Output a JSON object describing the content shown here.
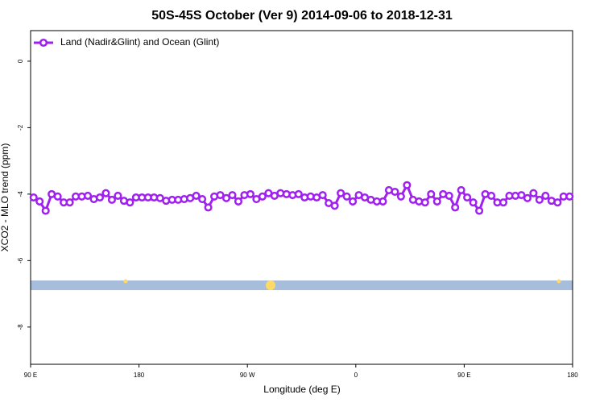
{
  "chart_data": {
    "type": "line",
    "title": "50S-45S October (Ver 9)   2014-09-06 to 2018-12-31",
    "x_label": "Longitude (deg E)",
    "y_label": "XCO2 - MLO trend (ppm)",
    "xlim": [
      90,
      540
    ],
    "xticks": [
      {
        "value": 90,
        "label": "90 E"
      },
      {
        "value": 180,
        "label": "180"
      },
      {
        "value": 270,
        "label": "90 W"
      },
      {
        "value": 360,
        "label": "0"
      },
      {
        "value": 450,
        "label": "90 E"
      },
      {
        "value": 540,
        "label": "180"
      }
    ],
    "ylim": [
      -9.12,
      0.92
    ],
    "yticks": [
      0,
      -2,
      -4,
      -6,
      -8
    ],
    "legend": "top-left",
    "series": [
      {
        "name": "Land (Nadir&Glint) and Ocean (Glint)",
        "color": "#a020f0",
        "x": [
          92.5,
          97.5,
          102.5,
          107.5,
          112.5,
          117.5,
          122.5,
          127.5,
          132.5,
          137.5,
          142.5,
          147.5,
          152.5,
          157.5,
          162.5,
          167.5,
          172.5,
          177.5,
          182.5,
          187.5,
          192.5,
          197.5,
          202.5,
          207.5,
          212.5,
          217.5,
          222.5,
          227.5,
          232.5,
          237.5,
          242.5,
          247.5,
          252.5,
          257.5,
          262.5,
          267.5,
          272.5,
          277.5,
          282.5,
          287.5,
          292.5,
          297.5,
          302.5,
          307.5,
          312.5,
          317.5,
          322.5,
          327.5,
          332.5,
          337.5,
          342.5,
          347.5,
          352.5,
          357.5,
          362.5,
          367.5,
          372.5,
          377.5,
          382.5,
          387.5,
          392.5,
          397.5,
          402.5,
          407.5,
          412.5,
          417.5,
          422.5,
          427.5,
          432.5,
          437.5,
          442.5,
          447.5,
          452.5,
          457.5,
          462.5,
          467.5,
          472.5,
          477.5,
          482.5,
          487.5,
          492.5,
          497.5,
          502.5,
          507.5,
          512.5,
          517.5,
          522.5,
          527.5,
          532.5,
          537.5
        ],
        "values": [
          -4.1,
          -4.22,
          -4.5,
          -4.0,
          -4.07,
          -4.25,
          -4.25,
          -4.07,
          -4.07,
          -4.05,
          -4.15,
          -4.1,
          -3.97,
          -4.17,
          -4.05,
          -4.2,
          -4.25,
          -4.1,
          -4.1,
          -4.1,
          -4.1,
          -4.12,
          -4.2,
          -4.17,
          -4.17,
          -4.15,
          -4.12,
          -4.05,
          -4.15,
          -4.4,
          -4.07,
          -4.03,
          -4.12,
          -4.03,
          -4.22,
          -4.03,
          -4.0,
          -4.15,
          -4.07,
          -3.97,
          -4.05,
          -3.97,
          -4.0,
          -4.03,
          -4.0,
          -4.1,
          -4.07,
          -4.1,
          -4.03,
          -4.27,
          -4.35,
          -3.97,
          -4.07,
          -4.22,
          -4.03,
          -4.1,
          -4.17,
          -4.22,
          -4.22,
          -3.88,
          -3.93,
          -4.07,
          -3.73,
          -4.17,
          -4.22,
          -4.25,
          -4.0,
          -4.22,
          -4.0,
          -4.05,
          -4.4,
          -3.88,
          -4.1,
          -4.25,
          -4.5,
          -4.0,
          -4.05,
          -4.25,
          -4.25,
          -4.05,
          -4.05,
          -4.03,
          -4.12,
          -3.97,
          -4.17,
          -4.05,
          -4.2,
          -4.25,
          -4.07,
          -4.07
        ]
      }
    ]
  }
}
